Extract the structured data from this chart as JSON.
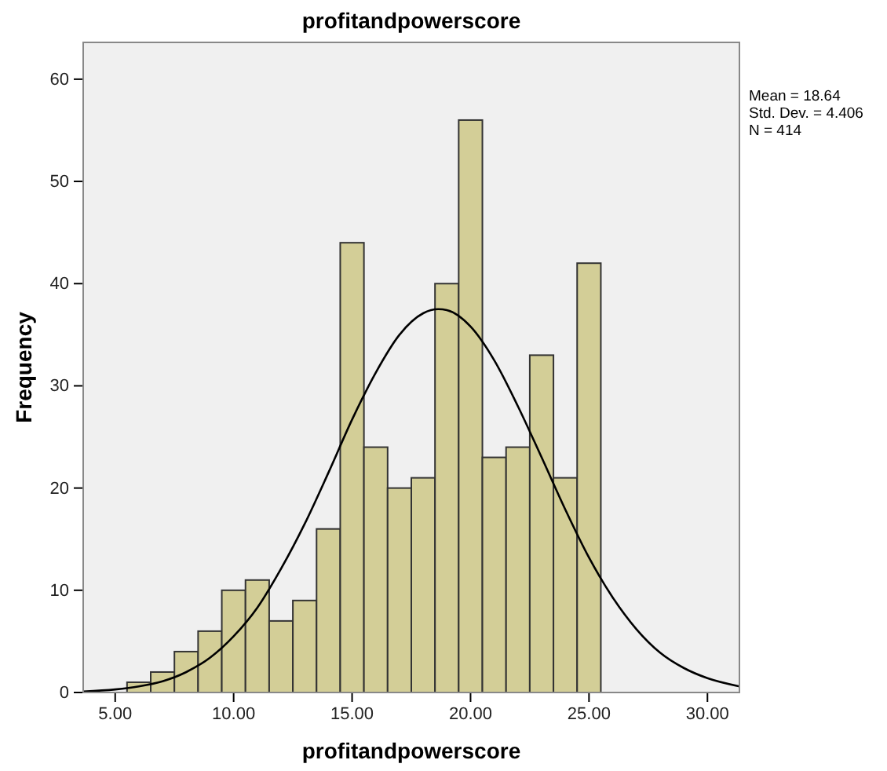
{
  "chart_data": {
    "type": "histogram",
    "title": "profitandpowerscore",
    "xlabel": "profitandpowerscore",
    "ylabel": "Frequency",
    "bins": [
      5.5,
      6.5,
      7.5,
      8.5,
      9.5,
      10.5,
      11.5,
      12.5,
      13.5,
      14.5,
      15.5,
      16.5,
      17.5,
      18.5,
      19.5,
      20.5,
      21.5,
      22.5,
      23.5,
      24.5,
      25.5
    ],
    "values": [
      1,
      2,
      4,
      6,
      10,
      11,
      7,
      9,
      16,
      44,
      24,
      20,
      21,
      40,
      56,
      23,
      24,
      33,
      21,
      42
    ],
    "color": "#d3ce97",
    "series": [
      {
        "type": "line",
        "color": "#000000",
        "x": [
          3.65,
          5,
          6,
          7,
          8,
          9,
          10,
          11,
          12,
          13,
          14,
          15,
          16,
          17,
          18,
          18.64,
          19,
          20,
          21,
          22,
          23,
          24,
          25,
          26,
          27,
          28,
          29,
          30,
          31.35
        ],
        "values": [
          0.1,
          0.3,
          0.6,
          1.1,
          2.0,
          3.4,
          5.5,
          8.3,
          12.1,
          16.5,
          21.5,
          26.7,
          31.3,
          35.0,
          37.1,
          37.5,
          37.4,
          35.8,
          32.5,
          28.0,
          23.0,
          17.9,
          13.2,
          9.3,
          6.2,
          3.9,
          2.4,
          1.4,
          0.6
        ]
      }
    ],
    "xlim": [
      3.65,
      31.35
    ],
    "xticks": [
      {
        "value": 5,
        "label": "5.00"
      },
      {
        "value": 10,
        "label": "10.00"
      },
      {
        "value": 15,
        "label": "15.00"
      },
      {
        "value": 20,
        "label": "20.00"
      },
      {
        "value": 25,
        "label": "25.00"
      },
      {
        "value": 30,
        "label": "30.00"
      }
    ],
    "ylim": [
      0,
      63.6
    ],
    "yticks": [
      0,
      10,
      20,
      30,
      40,
      50,
      60
    ],
    "grid": false,
    "annotations": [
      "Mean = 18.64",
      "Std. Dev. = 4.406",
      "N = 414"
    ]
  }
}
